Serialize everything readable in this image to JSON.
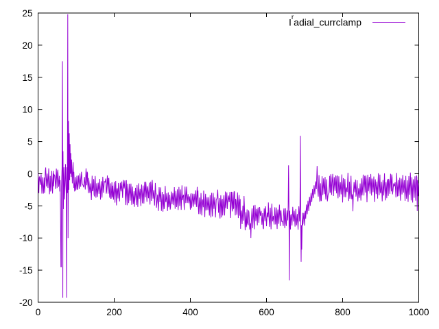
{
  "window": {
    "background": "#ffffff"
  },
  "colors": {
    "trace": "#9400d3",
    "axis": "#000000",
    "text": "#000000",
    "background": "#ffffff"
  },
  "legend": {
    "prefix": "I",
    "superscript": "r",
    "rest": "adial_currclamp",
    "position": "top-right"
  },
  "chart_data": {
    "type": "line",
    "title": "",
    "xlabel": "",
    "ylabel": "",
    "grid": false,
    "legend_label": "I^radial_currclamp",
    "series_color": "#9400d3",
    "axes": {
      "xlim": [
        0,
        1000
      ],
      "ylim": [
        -20,
        25
      ],
      "xticks": [
        0,
        200,
        400,
        600,
        800,
        1000
      ],
      "yticks": [
        25,
        20,
        15,
        10,
        5,
        0,
        -5,
        -10,
        -15,
        -20
      ]
    },
    "signal": {
      "description": "Noisy current-clamp signal: dense oscillation band with stepwise drift and transient spikes",
      "noise_step": 2,
      "segments": [
        {
          "type": "noise",
          "x0": 0,
          "x1": 58,
          "top": 1.0,
          "bottom": -3.4
        },
        {
          "type": "path",
          "points": [
            [
              58,
              -1
            ],
            [
              59,
              -6
            ],
            [
              60,
              -14.5
            ],
            [
              61,
              -14.5
            ],
            [
              61.5,
              -2
            ],
            [
              63,
              1
            ],
            [
              64,
              17.5
            ],
            [
              64.6,
              -2
            ],
            [
              65,
              -19.3
            ],
            [
              65.5,
              3.5
            ],
            [
              66.5,
              -5.5
            ],
            [
              68,
              1
            ],
            [
              70,
              -4
            ],
            [
              72,
              1.5
            ],
            [
              74,
              -3
            ],
            [
              75,
              -19.3
            ],
            [
              75.6,
              1
            ],
            [
              77,
              -3
            ],
            [
              78,
              24.8
            ],
            [
              78.8,
              -10
            ],
            [
              80,
              8.2
            ],
            [
              81,
              -2.5
            ],
            [
              82,
              6.3
            ],
            [
              83,
              -1
            ],
            [
              84,
              4.6
            ],
            [
              85,
              0
            ],
            [
              86,
              3.2
            ],
            [
              87,
              -0.5
            ],
            [
              88,
              2.2
            ],
            [
              90,
              -1.5
            ],
            [
              92,
              1.8
            ],
            [
              94,
              -2.2
            ]
          ]
        },
        {
          "type": "noise",
          "x0": 94,
          "x1": 130,
          "top": 0.9,
          "bottom": -2.9
        },
        {
          "type": "noise",
          "x0": 130,
          "x1": 196,
          "top": 0.1,
          "bottom": -4.2
        },
        {
          "type": "noise",
          "x0": 196,
          "x1": 310,
          "top": -0.9,
          "bottom": -5.3
        },
        {
          "type": "noise",
          "x0": 310,
          "x1": 420,
          "top": -1.8,
          "bottom": -6.0
        },
        {
          "type": "noise",
          "x0": 420,
          "x1": 530,
          "top": -2.4,
          "bottom": -7.1
        },
        {
          "type": "noise",
          "x0": 530,
          "x1": 656,
          "top": -4.6,
          "bottom": -8.8
        },
        {
          "type": "path",
          "points": [
            [
              657,
              -5
            ],
            [
              658,
              1.3
            ],
            [
              659,
              -5
            ],
            [
              660,
              -16.6
            ],
            [
              661,
              -6
            ]
          ]
        },
        {
          "type": "noise",
          "x0": 661,
          "x1": 687,
          "top": -4.8,
          "bottom": -8.8
        },
        {
          "type": "path",
          "points": [
            [
              688,
              -5
            ],
            [
              689,
              5.9
            ],
            [
              690,
              -8
            ],
            [
              691,
              -13.7
            ],
            [
              691.8,
              -8
            ],
            [
              692.6,
              -11.8
            ],
            [
              694,
              -7
            ]
          ]
        },
        {
          "type": "noise",
          "x0": 694,
          "x1": 703,
          "top": -5.0,
          "bottom": -8.5
        },
        {
          "type": "path",
          "points": [
            [
              703,
              -7
            ],
            [
              705,
              -4.8
            ],
            [
              707,
              -6.3
            ],
            [
              709,
              -4.2
            ],
            [
              711,
              -5.8
            ],
            [
              713,
              -3.6
            ],
            [
              715,
              -5.0
            ],
            [
              717,
              -3.0
            ],
            [
              719,
              -4.4
            ],
            [
              721,
              -2.4
            ],
            [
              723,
              -3.8
            ],
            [
              725,
              -1.8
            ],
            [
              727,
              -3.2
            ],
            [
              729,
              -1.2
            ],
            [
              731,
              -2.4
            ],
            [
              733,
              1.2
            ],
            [
              734,
              -1.0
            ]
          ]
        },
        {
          "type": "noise",
          "x0": 734,
          "x1": 994,
          "top": 0.3,
          "bottom": -4.5
        },
        {
          "type": "path",
          "points": [
            [
              995,
              -0.5
            ],
            [
              996,
              -5.8
            ],
            [
              997,
              -1
            ],
            [
              998,
              -3.5
            ],
            [
              1000,
              -1.5
            ]
          ]
        }
      ]
    }
  }
}
